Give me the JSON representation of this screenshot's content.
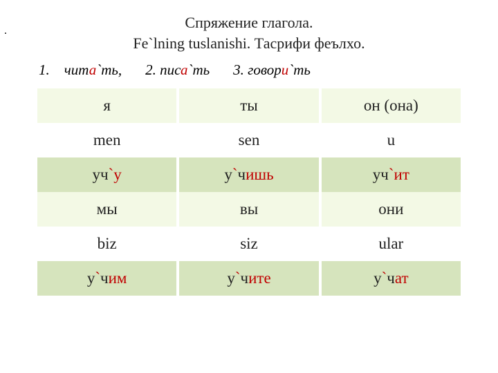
{
  "title": {
    "line1": "Спряжение глагола.",
    "line2": "Fe`lning tuslanishi. Тасрифи феълхо."
  },
  "verbs": {
    "item1_num": "1.",
    "item1_stem": "чит",
    "item1_hl": "а",
    "item1_end": "`ть,",
    "item2_num": "2.",
    "item2_stem": "пис",
    "item2_hl": "а",
    "item2_end": "`ть",
    "item3_num": "3.",
    "item3_stem": "говор",
    "item3_hl": "и",
    "item3_end": "`ть"
  },
  "colors": {
    "row_light": "#f3f9e5",
    "row_white": "#ffffff",
    "row_green": "#d6e4bd",
    "highlight": "#c00000",
    "text": "#1f1f1f"
  },
  "rows": {
    "r1": {
      "c1": "я",
      "c2": "ты",
      "c3": "он (она)"
    },
    "r2": {
      "c1": "men",
      "c2": "sen",
      "c3": "u"
    },
    "r3": {
      "c1_pre": "уч",
      "c1_acc": "`",
      "c1_end": "у",
      "c2_pre": "у",
      "c2_acc": "`",
      "c2_mid": "ч",
      "c2_end": "ишь",
      "c3_pre": "уч",
      "c3_acc": "`",
      "c3_end": "ит"
    },
    "r4": {
      "c1": "мы",
      "c2": "вы",
      "c3": "они"
    },
    "r5": {
      "c1": "biz",
      "c2": "siz",
      "c3": "ular"
    },
    "r6": {
      "c1_pre": "у",
      "c1_acc": "`",
      "c1_mid": "ч",
      "c1_end": "им",
      "c2_pre": "у",
      "c2_acc": "`",
      "c2_mid": "ч",
      "c2_end": "ите",
      "c3_pre": "у",
      "c3_acc": "`",
      "c3_mid": "ч",
      "c3_end": "ат"
    }
  }
}
